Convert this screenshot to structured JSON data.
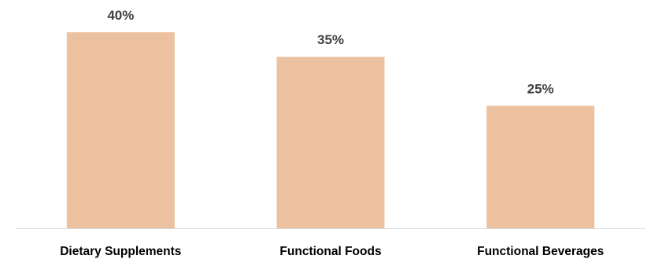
{
  "chart_data": {
    "type": "bar",
    "categories": [
      "Dietary Supplements",
      "Functional Foods",
      "Functional Beverages"
    ],
    "values": [
      40,
      35,
      25
    ],
    "value_labels": [
      "40%",
      "35%",
      "25%"
    ],
    "title": "",
    "xlabel": "",
    "ylabel": "",
    "ylim": [
      0,
      40
    ],
    "grid": false,
    "legend": "none",
    "colors": {
      "bar": "#ebc19f",
      "axis": "#d9d9d9",
      "value_label": "#404040",
      "category_label": "#000000"
    }
  }
}
